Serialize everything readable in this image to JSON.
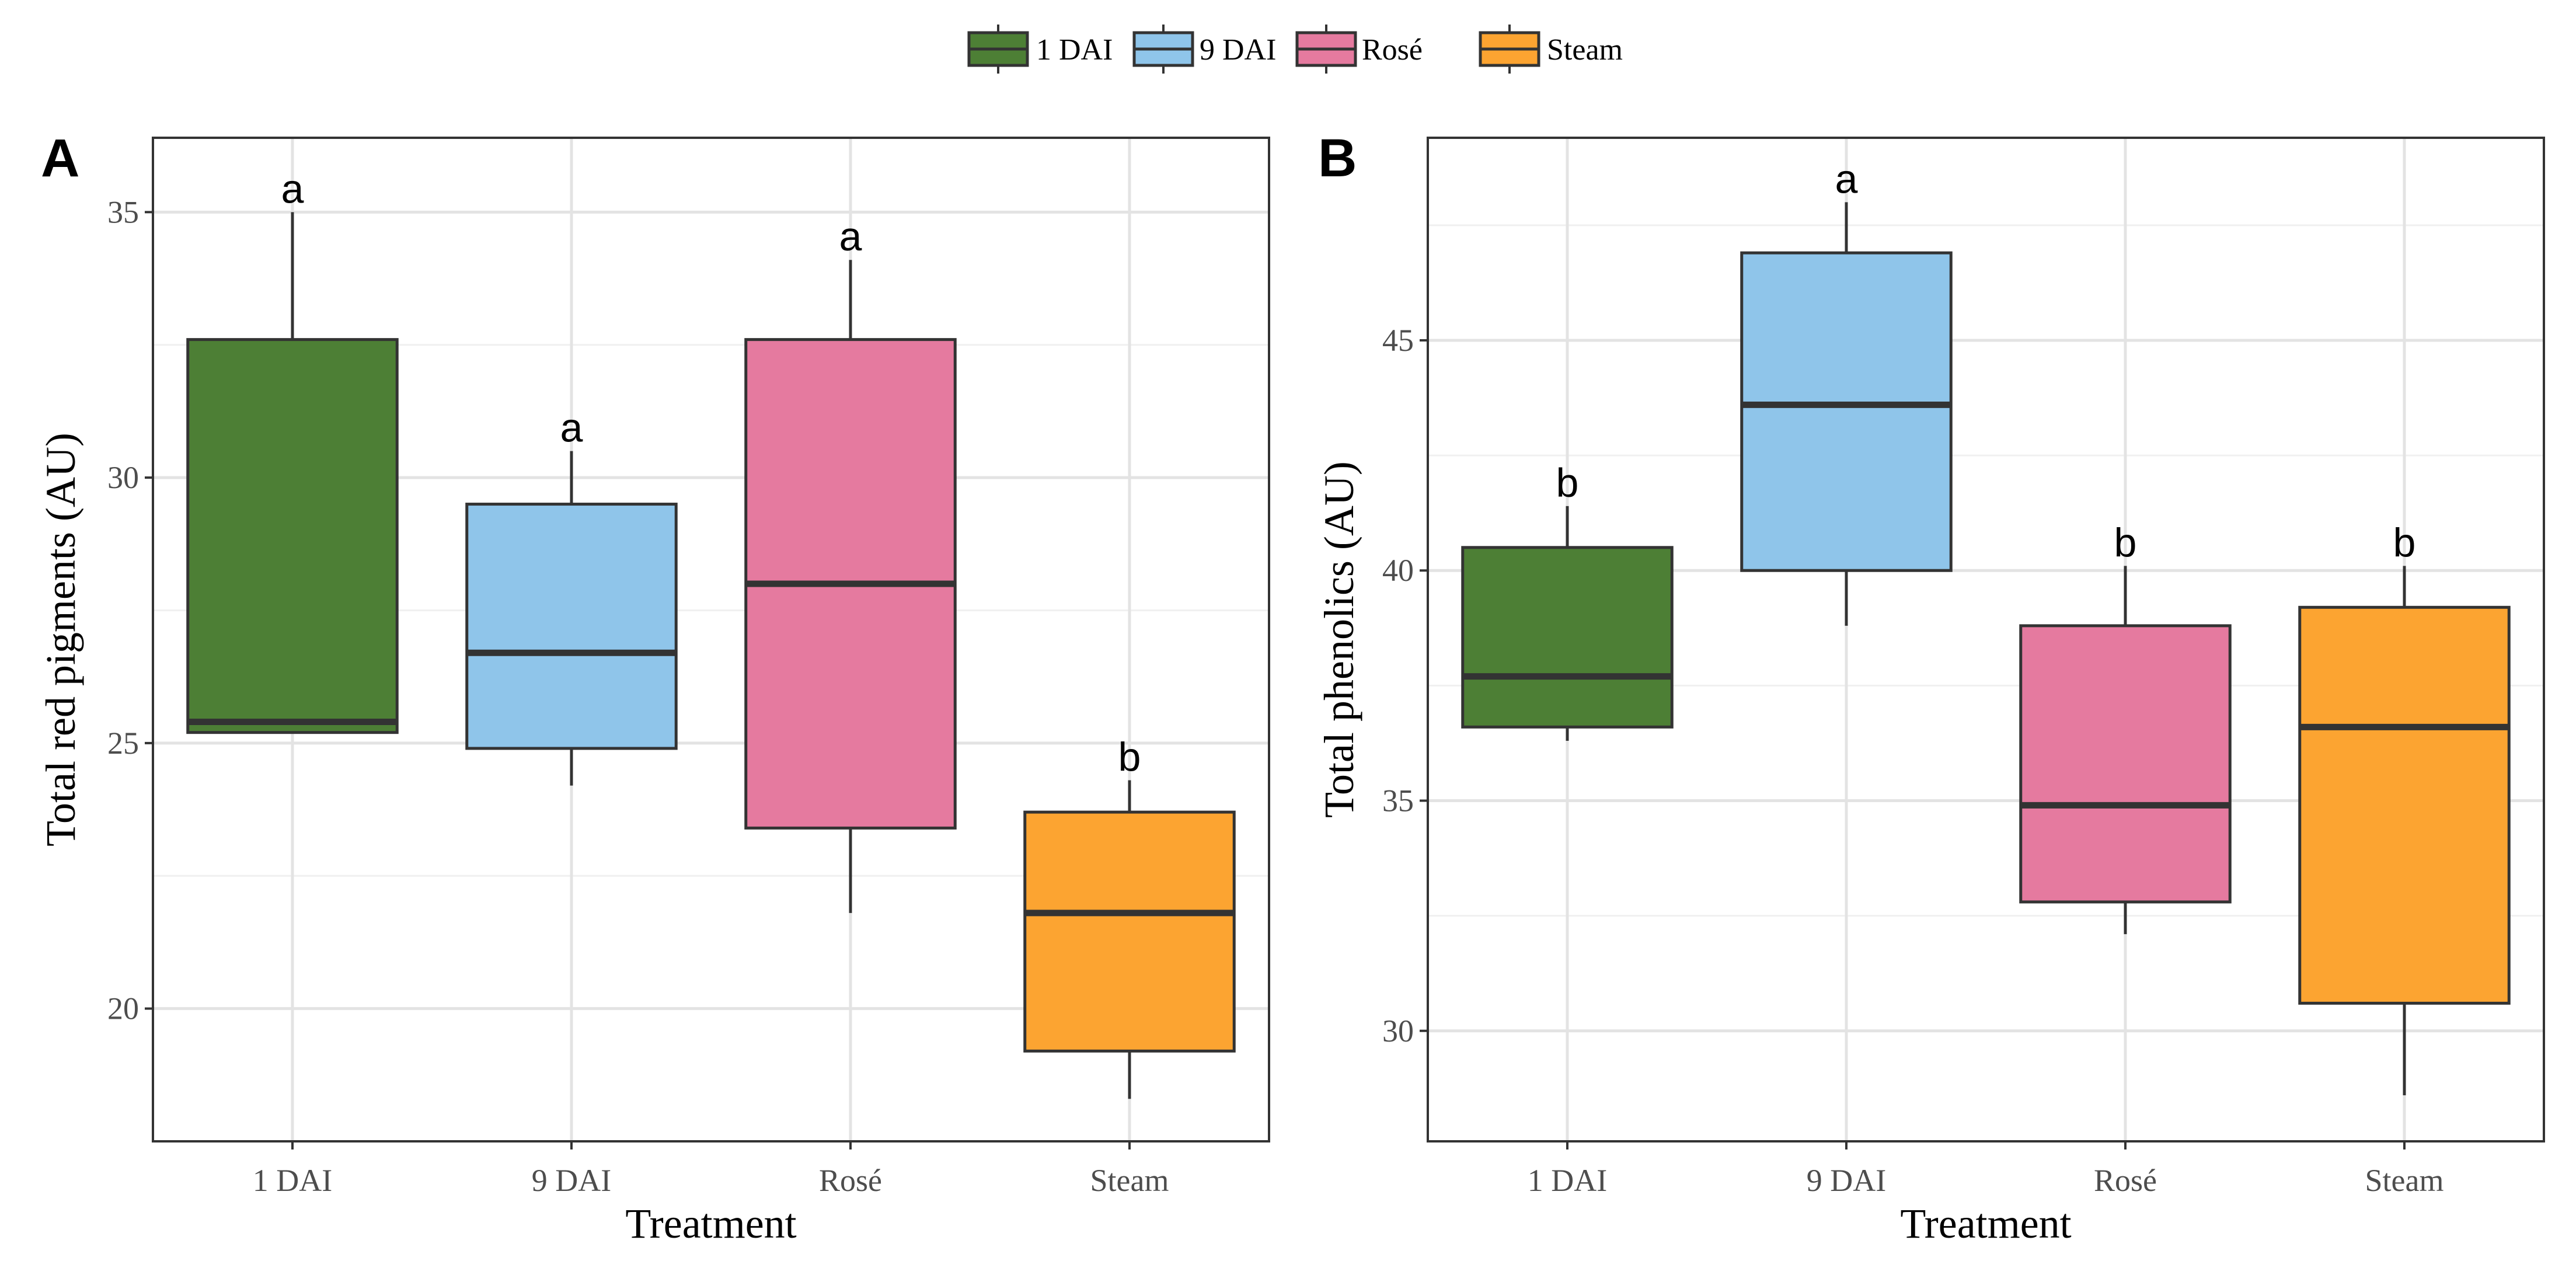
{
  "legend": {
    "items": [
      {
        "label": "1 DAI",
        "color": "#4d7f35"
      },
      {
        "label": "9 DAI",
        "color": "#8fc5ea"
      },
      {
        "label": "Rosé",
        "color": "#e57a9f"
      },
      {
        "label": "Steam",
        "color": "#fca431"
      }
    ]
  },
  "chart_data": [
    {
      "type": "box",
      "panel_label": "A",
      "xlabel": "Treatment",
      "ylabel": "Total red pigments (AU)",
      "ylim": [
        17.5,
        36.4
      ],
      "yticks": [
        20,
        25,
        30,
        35
      ],
      "ytick_labels": [
        "20",
        "25",
        "30",
        "35"
      ],
      "grid": true,
      "categories": [
        "1 DAI",
        "9 DAI",
        "Rosé",
        "Steam"
      ],
      "boxes": [
        {
          "category": "1 DAI",
          "whisker_low": 25.2,
          "q1": 25.2,
          "median": 25.4,
          "q3": 32.6,
          "whisker_high": 35.0,
          "letter": "a",
          "color": "#4d7f35"
        },
        {
          "category": "9 DAI",
          "whisker_low": 24.2,
          "q1": 24.9,
          "median": 26.7,
          "q3": 29.5,
          "whisker_high": 30.5,
          "letter": "a",
          "color": "#8fc5ea"
        },
        {
          "category": "Rosé",
          "whisker_low": 21.8,
          "q1": 23.4,
          "median": 28.0,
          "q3": 32.6,
          "whisker_high": 34.1,
          "letter": "a",
          "color": "#e57a9f"
        },
        {
          "category": "Steam",
          "whisker_low": 18.3,
          "q1": 19.2,
          "median": 21.8,
          "q3": 23.7,
          "whisker_high": 24.3,
          "letter": "b",
          "color": "#fca431"
        }
      ]
    },
    {
      "type": "box",
      "panel_label": "B",
      "xlabel": "Treatment",
      "ylabel": "Total phenolics (AU)",
      "ylim": [
        27.6,
        49.4
      ],
      "yticks": [
        30,
        35,
        40,
        45
      ],
      "ytick_labels": [
        "30",
        "35",
        "40",
        "45"
      ],
      "grid": true,
      "categories": [
        "1 DAI",
        "9 DAI",
        "Rosé",
        "Steam"
      ],
      "boxes": [
        {
          "category": "1 DAI",
          "whisker_low": 36.3,
          "q1": 36.6,
          "median": 37.7,
          "q3": 40.5,
          "whisker_high": 41.4,
          "letter": "b",
          "color": "#4d7f35"
        },
        {
          "category": "9 DAI",
          "whisker_low": 38.8,
          "q1": 40.0,
          "median": 43.6,
          "q3": 46.9,
          "whisker_high": 48.0,
          "letter": "a",
          "color": "#8fc5ea"
        },
        {
          "category": "Rosé",
          "whisker_low": 32.1,
          "q1": 32.8,
          "median": 34.9,
          "q3": 38.8,
          "whisker_high": 40.1,
          "letter": "b",
          "color": "#e57a9f"
        },
        {
          "category": "Steam",
          "whisker_low": 28.6,
          "q1": 30.6,
          "median": 36.6,
          "q3": 39.2,
          "whisker_high": 40.1,
          "letter": "b",
          "color": "#fca431"
        }
      ]
    }
  ]
}
